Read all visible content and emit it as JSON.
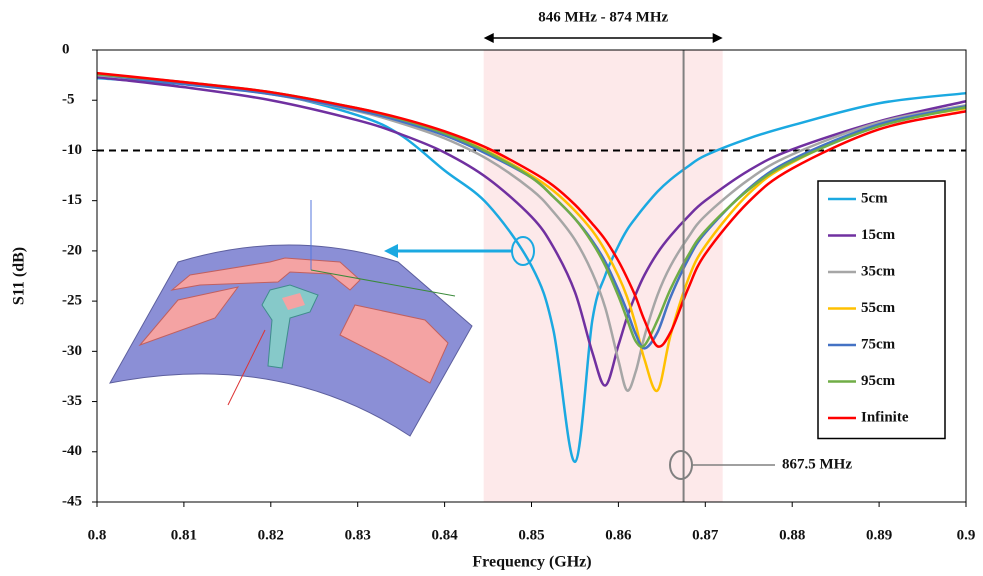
{
  "chart_data": {
    "type": "line",
    "x_label": "Frequency (GHz)",
    "y_label": "S11 (dB)",
    "x": [
      0.8,
      0.81,
      0.82,
      0.83,
      0.835,
      0.84,
      0.845,
      0.85,
      0.8525,
      0.855,
      0.857,
      0.8585,
      0.86,
      0.861,
      0.862,
      0.863,
      0.8645,
      0.866,
      0.868,
      0.87,
      0.875,
      0.88,
      0.89,
      0.9
    ],
    "series": [
      {
        "name": "5cm",
        "color": "#1ba9e1",
        "values": [
          -2.8,
          -3.4,
          -4.3,
          -6.5,
          -8.5,
          -12,
          -15.4,
          -21.5,
          -27.8,
          -41,
          -26.9,
          -22.4,
          -19.5,
          -17.9,
          -16.7,
          -15.6,
          -14.1,
          -12.9,
          -11.6,
          -10.5,
          -8.8,
          -7.5,
          -5.3,
          -4.3
        ]
      },
      {
        "name": "15cm",
        "color": "#7030a0",
        "values": [
          -2.7,
          -3.7,
          -5,
          -7,
          -8.4,
          -10.2,
          -12.8,
          -16.6,
          -19.6,
          -24.1,
          -30.1,
          -33.4,
          -29.4,
          -26.6,
          -24.3,
          -22.4,
          -20.2,
          -18.5,
          -16.6,
          -15,
          -12,
          -9.9,
          -7.1,
          -5.1
        ]
      },
      {
        "name": "35cm",
        "color": "#a6a6a6",
        "values": [
          -2.5,
          -3.3,
          -4.4,
          -6.1,
          -7.3,
          -8.8,
          -10.9,
          -13.9,
          -16.1,
          -18.9,
          -22.2,
          -25.7,
          -30.9,
          -33.9,
          -32,
          -28.5,
          -24.4,
          -21.5,
          -18.7,
          -16.5,
          -12.9,
          -10.4,
          -7.2,
          -5.5
        ]
      },
      {
        "name": "55cm",
        "color": "#ffc000",
        "values": [
          -2.4,
          -3.3,
          -4.3,
          -5.9,
          -7,
          -8.3,
          -10.1,
          -12.5,
          -14,
          -16,
          -18,
          -20,
          -22.5,
          -24.6,
          -27.4,
          -30.8,
          -33.9,
          -28.4,
          -22.9,
          -19.5,
          -14.3,
          -11.2,
          -7.5,
          -5.8
        ]
      },
      {
        "name": "75cm",
        "color": "#4472c4",
        "values": [
          -2.4,
          -3.4,
          -4.4,
          -6,
          -7.1,
          -8.5,
          -10.4,
          -12.7,
          -14.6,
          -16.8,
          -19,
          -21.1,
          -23.9,
          -26,
          -28.3,
          -29.7,
          -28.1,
          -24.6,
          -20.9,
          -18.2,
          -13.8,
          -10.9,
          -7.4,
          -5.6
        ]
      },
      {
        "name": "95cm",
        "color": "#70ad47",
        "values": [
          -2.4,
          -3.2,
          -4.2,
          -5.8,
          -6.9,
          -8.3,
          -10.2,
          -12.7,
          -14.6,
          -16.8,
          -19.2,
          -21.5,
          -24.5,
          -26.8,
          -29,
          -29.4,
          -26.9,
          -23.8,
          -20.5,
          -18,
          -13.9,
          -11.1,
          -7.6,
          -5.7
        ]
      },
      {
        "name": "Infinite",
        "color": "#ff0000",
        "values": [
          -2.3,
          -3.2,
          -4.2,
          -5.8,
          -6.8,
          -8.1,
          -9.8,
          -12.1,
          -13.5,
          -15.4,
          -17.3,
          -18.9,
          -21,
          -22.7,
          -24.6,
          -26.9,
          -29.5,
          -28.1,
          -23.8,
          -20.3,
          -15.1,
          -11.8,
          -7.9,
          -6.1
        ]
      }
    ],
    "xlim": [
      0.8,
      0.9
    ],
    "xticks": [
      0.8,
      0.81,
      0.82,
      0.83,
      0.84,
      0.85,
      0.86,
      0.87,
      0.88,
      0.89,
      0.9
    ],
    "ylim": [
      -45,
      0
    ],
    "yticks": [
      0,
      -5,
      -10,
      -15,
      -20,
      -25,
      -30,
      -35,
      -40,
      -45
    ],
    "legend": "right",
    "annotations": {
      "band_label": "846 MHz - 874 MHz",
      "band": [
        0.8445,
        0.872
      ],
      "band_color": "#fde9ea",
      "threshold": -10,
      "marker_label": "867.5 MHz",
      "marker_x": 0.8675
    }
  }
}
